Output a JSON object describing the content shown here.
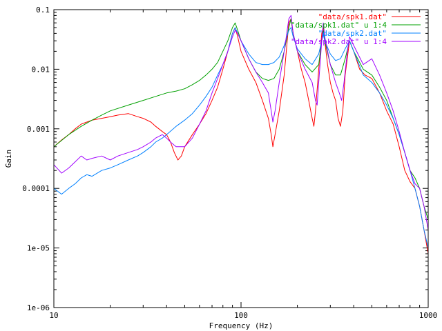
{
  "chart_data": {
    "type": "line",
    "title": "",
    "xlabel": "Frequency (Hz)",
    "ylabel": "Gain",
    "x_scale": "log",
    "y_scale": "log",
    "xlim": [
      10,
      1000
    ],
    "ylim": [
      1e-06,
      0.1
    ],
    "x_ticks": [
      {
        "value": 10,
        "label": "10"
      },
      {
        "value": 100,
        "label": "100"
      },
      {
        "value": 1000,
        "label": "1000"
      }
    ],
    "y_ticks": [
      {
        "value": 0.1,
        "label": "0.1"
      },
      {
        "value": 0.01,
        "label": "0.01"
      },
      {
        "value": 0.001,
        "label": "0.001"
      },
      {
        "value": 0.0001,
        "label": "0.0001"
      },
      {
        "value": 1e-05,
        "label": "1e-05"
      },
      {
        "value": 1e-06,
        "label": "1e-06"
      }
    ],
    "grid": false,
    "legend_position": "top-right",
    "series": [
      {
        "name": "\"data/spk1.dat\"",
        "color": "#ff0000",
        "points": [
          [
            10,
            0.0005
          ],
          [
            11,
            0.00065
          ],
          [
            12,
            0.0008
          ],
          [
            13,
            0.001
          ],
          [
            14,
            0.0012
          ],
          [
            15,
            0.0013
          ],
          [
            16,
            0.0014
          ],
          [
            18,
            0.0015
          ],
          [
            20,
            0.0016
          ],
          [
            22,
            0.0017
          ],
          [
            25,
            0.0018
          ],
          [
            28,
            0.0016
          ],
          [
            30,
            0.0015
          ],
          [
            33,
            0.0013
          ],
          [
            35,
            0.0011
          ],
          [
            38,
            0.0009
          ],
          [
            40,
            0.0008
          ],
          [
            42,
            0.0006
          ],
          [
            44,
            0.0004
          ],
          [
            46,
            0.0003
          ],
          [
            48,
            0.00035
          ],
          [
            50,
            0.0005
          ],
          [
            55,
            0.0008
          ],
          [
            60,
            0.0012
          ],
          [
            65,
            0.0018
          ],
          [
            70,
            0.003
          ],
          [
            75,
            0.005
          ],
          [
            80,
            0.01
          ],
          [
            85,
            0.02
          ],
          [
            90,
            0.04
          ],
          [
            93,
            0.05
          ],
          [
            96,
            0.035
          ],
          [
            100,
            0.02
          ],
          [
            110,
            0.01
          ],
          [
            120,
            0.006
          ],
          [
            130,
            0.003
          ],
          [
            140,
            0.0015
          ],
          [
            145,
            0.0008
          ],
          [
            148,
            0.0005
          ],
          [
            152,
            0.0008
          ],
          [
            160,
            0.002
          ],
          [
            170,
            0.008
          ],
          [
            180,
            0.06
          ],
          [
            185,
            0.07
          ],
          [
            190,
            0.04
          ],
          [
            200,
            0.02
          ],
          [
            210,
            0.01
          ],
          [
            220,
            0.006
          ],
          [
            230,
            0.003
          ],
          [
            240,
            0.0015
          ],
          [
            245,
            0.0011
          ],
          [
            250,
            0.002
          ],
          [
            260,
            0.01
          ],
          [
            270,
            0.04
          ],
          [
            275,
            0.05
          ],
          [
            280,
            0.03
          ],
          [
            290,
            0.012
          ],
          [
            300,
            0.006
          ],
          [
            310,
            0.004
          ],
          [
            320,
            0.003
          ],
          [
            330,
            0.0015
          ],
          [
            340,
            0.0011
          ],
          [
            350,
            0.002
          ],
          [
            360,
            0.008
          ],
          [
            380,
            0.03
          ],
          [
            400,
            0.02
          ],
          [
            430,
            0.01
          ],
          [
            460,
            0.008
          ],
          [
            500,
            0.007
          ],
          [
            550,
            0.004
          ],
          [
            600,
            0.002
          ],
          [
            650,
            0.0012
          ],
          [
            700,
            0.0005
          ],
          [
            750,
            0.0002
          ],
          [
            800,
            0.00013
          ],
          [
            850,
            0.0001
          ],
          [
            900,
            5e-05
          ],
          [
            950,
            2e-05
          ],
          [
            1000,
            8e-06
          ]
        ]
      },
      {
        "name": "\"data/spk1.dat\" u 1:4",
        "color": "#00a000",
        "points": [
          [
            10,
            0.0005
          ],
          [
            12,
            0.0008
          ],
          [
            14,
            0.0011
          ],
          [
            16,
            0.0014
          ],
          [
            18,
            0.0017
          ],
          [
            20,
            0.002
          ],
          [
            25,
            0.0025
          ],
          [
            30,
            0.003
          ],
          [
            35,
            0.0035
          ],
          [
            40,
            0.004
          ],
          [
            45,
            0.0043
          ],
          [
            50,
            0.0047
          ],
          [
            55,
            0.0055
          ],
          [
            60,
            0.0065
          ],
          [
            65,
            0.008
          ],
          [
            70,
            0.01
          ],
          [
            75,
            0.013
          ],
          [
            80,
            0.02
          ],
          [
            85,
            0.03
          ],
          [
            90,
            0.05
          ],
          [
            93,
            0.06
          ],
          [
            96,
            0.045
          ],
          [
            100,
            0.03
          ],
          [
            110,
            0.015
          ],
          [
            120,
            0.009
          ],
          [
            130,
            0.007
          ],
          [
            140,
            0.0065
          ],
          [
            150,
            0.007
          ],
          [
            160,
            0.01
          ],
          [
            170,
            0.02
          ],
          [
            180,
            0.05
          ],
          [
            185,
            0.07
          ],
          [
            190,
            0.04
          ],
          [
            200,
            0.02
          ],
          [
            220,
            0.012
          ],
          [
            240,
            0.009
          ],
          [
            260,
            0.012
          ],
          [
            270,
            0.03
          ],
          [
            275,
            0.045
          ],
          [
            280,
            0.03
          ],
          [
            300,
            0.012
          ],
          [
            320,
            0.008
          ],
          [
            340,
            0.008
          ],
          [
            360,
            0.015
          ],
          [
            380,
            0.03
          ],
          [
            400,
            0.02
          ],
          [
            450,
            0.01
          ],
          [
            500,
            0.008
          ],
          [
            550,
            0.005
          ],
          [
            600,
            0.003
          ],
          [
            650,
            0.0015
          ],
          [
            700,
            0.0008
          ],
          [
            750,
            0.0004
          ],
          [
            800,
            0.0002
          ],
          [
            850,
            0.00015
          ],
          [
            900,
            0.0001
          ],
          [
            950,
            5e-05
          ],
          [
            1000,
            3e-05
          ]
        ]
      },
      {
        "name": "\"data/spk2.dat\"",
        "color": "#0080ff",
        "points": [
          [
            10,
            0.0001
          ],
          [
            11,
            8e-05
          ],
          [
            12,
            0.0001
          ],
          [
            13,
            0.00012
          ],
          [
            14,
            0.00015
          ],
          [
            15,
            0.00017
          ],
          [
            16,
            0.00016
          ],
          [
            18,
            0.0002
          ],
          [
            20,
            0.00022
          ],
          [
            22,
            0.00025
          ],
          [
            25,
            0.0003
          ],
          [
            28,
            0.00035
          ],
          [
            30,
            0.0004
          ],
          [
            33,
            0.0005
          ],
          [
            35,
            0.0006
          ],
          [
            38,
            0.0007
          ],
          [
            40,
            0.0008
          ],
          [
            45,
            0.0011
          ],
          [
            50,
            0.0014
          ],
          [
            55,
            0.0018
          ],
          [
            60,
            0.0025
          ],
          [
            65,
            0.0035
          ],
          [
            70,
            0.005
          ],
          [
            75,
            0.008
          ],
          [
            80,
            0.012
          ],
          [
            85,
            0.02
          ],
          [
            90,
            0.04
          ],
          [
            93,
            0.05
          ],
          [
            96,
            0.04
          ],
          [
            100,
            0.03
          ],
          [
            110,
            0.018
          ],
          [
            120,
            0.013
          ],
          [
            130,
            0.012
          ],
          [
            140,
            0.012
          ],
          [
            150,
            0.013
          ],
          [
            160,
            0.016
          ],
          [
            170,
            0.025
          ],
          [
            180,
            0.045
          ],
          [
            185,
            0.05
          ],
          [
            190,
            0.035
          ],
          [
            200,
            0.022
          ],
          [
            220,
            0.015
          ],
          [
            240,
            0.012
          ],
          [
            260,
            0.018
          ],
          [
            270,
            0.03
          ],
          [
            275,
            0.038
          ],
          [
            280,
            0.03
          ],
          [
            300,
            0.018
          ],
          [
            320,
            0.014
          ],
          [
            340,
            0.015
          ],
          [
            360,
            0.022
          ],
          [
            380,
            0.03
          ],
          [
            400,
            0.02
          ],
          [
            450,
            0.008
          ],
          [
            500,
            0.006
          ],
          [
            550,
            0.004
          ],
          [
            600,
            0.0025
          ],
          [
            650,
            0.0015
          ],
          [
            700,
            0.0008
          ],
          [
            750,
            0.0004
          ],
          [
            800,
            0.0002
          ],
          [
            850,
            0.0001
          ],
          [
            900,
            5e-05
          ],
          [
            950,
            2e-05
          ],
          [
            1000,
            1e-05
          ]
        ]
      },
      {
        "name": "\"data/spk2.dat\" u 1:4",
        "color": "#a000ff",
        "points": [
          [
            10,
            0.00025
          ],
          [
            11,
            0.00018
          ],
          [
            12,
            0.00022
          ],
          [
            13,
            0.00028
          ],
          [
            14,
            0.00035
          ],
          [
            15,
            0.0003
          ],
          [
            16,
            0.00032
          ],
          [
            18,
            0.00035
          ],
          [
            20,
            0.0003
          ],
          [
            22,
            0.00035
          ],
          [
            25,
            0.0004
          ],
          [
            28,
            0.00045
          ],
          [
            30,
            0.0005
          ],
          [
            33,
            0.0006
          ],
          [
            35,
            0.0007
          ],
          [
            38,
            0.0008
          ],
          [
            40,
            0.0007
          ],
          [
            42,
            0.0006
          ],
          [
            45,
            0.0005
          ],
          [
            50,
            0.0005
          ],
          [
            55,
            0.0007
          ],
          [
            60,
            0.0012
          ],
          [
            65,
            0.002
          ],
          [
            70,
            0.004
          ],
          [
            75,
            0.007
          ],
          [
            80,
            0.012
          ],
          [
            85,
            0.02
          ],
          [
            90,
            0.035
          ],
          [
            93,
            0.045
          ],
          [
            96,
            0.04
          ],
          [
            100,
            0.03
          ],
          [
            110,
            0.015
          ],
          [
            120,
            0.009
          ],
          [
            130,
            0.006
          ],
          [
            140,
            0.004
          ],
          [
            145,
            0.002
          ],
          [
            148,
            0.0013
          ],
          [
            152,
            0.002
          ],
          [
            160,
            0.006
          ],
          [
            170,
            0.02
          ],
          [
            180,
            0.07
          ],
          [
            185,
            0.08
          ],
          [
            190,
            0.04
          ],
          [
            200,
            0.02
          ],
          [
            220,
            0.01
          ],
          [
            240,
            0.006
          ],
          [
            250,
            0.003
          ],
          [
            255,
            0.0025
          ],
          [
            260,
            0.006
          ],
          [
            270,
            0.03
          ],
          [
            275,
            0.06
          ],
          [
            280,
            0.035
          ],
          [
            300,
            0.012
          ],
          [
            320,
            0.006
          ],
          [
            335,
            0.004
          ],
          [
            345,
            0.003
          ],
          [
            355,
            0.006
          ],
          [
            370,
            0.02
          ],
          [
            380,
            0.035
          ],
          [
            400,
            0.025
          ],
          [
            450,
            0.012
          ],
          [
            500,
            0.015
          ],
          [
            550,
            0.008
          ],
          [
            600,
            0.004
          ],
          [
            650,
            0.002
          ],
          [
            700,
            0.0009
          ],
          [
            750,
            0.0004
          ],
          [
            800,
            0.0002
          ],
          [
            850,
            0.00012
          ],
          [
            900,
            0.0001
          ],
          [
            950,
            5e-05
          ],
          [
            1000,
            2e-05
          ]
        ]
      }
    ]
  }
}
